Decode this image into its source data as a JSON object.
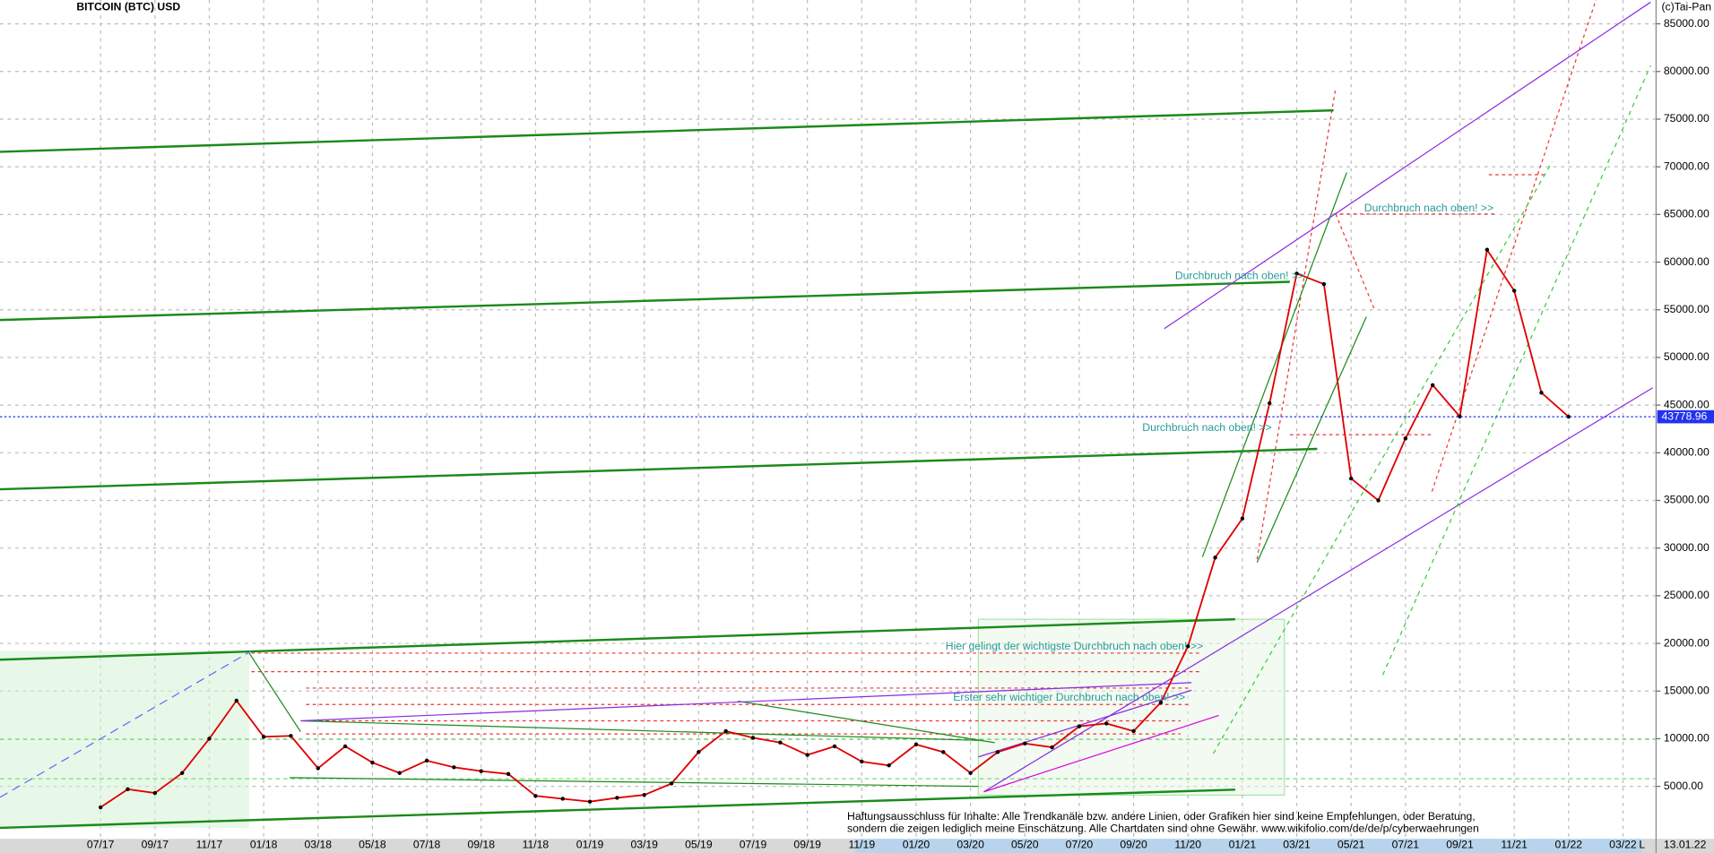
{
  "chart_data": {
    "type": "line",
    "title": "BITCOIN (BTC) USD",
    "source": "(c)Tai-Pan",
    "date_label": "13.01.22",
    "scale_label": "L",
    "annotations": [
      "Durchbruch nach oben! >>",
      "Durchbruch nach oben! >>",
      "Durchbruch nach oben! >>",
      "Hier gelingt der wichtigste Durchbruch nach oben! >>",
      "Erster sehr wichtiger Durchbruch nach oben! >>"
    ],
    "disclaimer": [
      "Haftungsausschluss für Inhalte: Alle Trendkanäle bzw. andere Linien, oder Grafiken hier sind keine Empfehlungen, oder Beratung,",
      "sondern die zeigen lediglich meine  Einschätzung. Alle Chartdaten sind ohne Gewähr.  www.wikifolio.com/de/de/p/cyberwaehrungen"
    ],
    "categories": [
      "07/17",
      null,
      "09/17",
      null,
      "11/17",
      null,
      "01/18",
      null,
      "03/18",
      null,
      "05/18",
      null,
      "07/18",
      null,
      "09/18",
      null,
      "11/18",
      null,
      "01/19",
      null,
      "03/19",
      null,
      "05/19",
      null,
      "07/19",
      null,
      "09/19",
      null,
      "11/19",
      null,
      "01/20",
      null,
      "03/20",
      null,
      "05/20",
      null,
      "07/20",
      null,
      "09/20",
      null,
      "11/20",
      null,
      "01/21",
      null,
      "03/21",
      null,
      "05/21",
      null,
      "07/21",
      null,
      "09/21",
      null,
      "11/21",
      null,
      "01/22",
      null,
      "03/22"
    ],
    "series": [
      {
        "name": "BTC",
        "color": "#e00000",
        "values": [
          2800,
          4700,
          4300,
          6400,
          10000,
          14000,
          10200,
          10300,
          6900,
          9200,
          7500,
          6400,
          7700,
          7000,
          6600,
          6300,
          4000,
          3700,
          3400,
          3800,
          4100,
          5300,
          8600,
          10800,
          10100,
          9600,
          8300,
          9200,
          7600,
          7200,
          9400,
          8600,
          6400,
          8600,
          9500,
          9100,
          11300,
          11600,
          10800,
          13800,
          19700,
          29000,
          33100,
          45200,
          58800,
          57700,
          37300,
          35000,
          41500,
          47100,
          43800,
          61300,
          57000,
          46300,
          43779,
          null,
          null
        ]
      }
    ],
    "last_price": 43778.96,
    "ylim": [
      -500,
      87500
    ],
    "yticks": [
      {
        "value": 5000,
        "label": "5000.00"
      },
      {
        "value": 10000,
        "label": "10000.00"
      },
      {
        "value": 15000,
        "label": "15000.00"
      },
      {
        "value": 20000,
        "label": "20000.00"
      },
      {
        "value": 25000,
        "label": "25000.00"
      },
      {
        "value": 30000,
        "label": "30000.00"
      },
      {
        "value": 35000,
        "label": "35000.00"
      },
      {
        "value": 40000,
        "label": "40000.00"
      },
      {
        "value": 45000,
        "label": "45000.00"
      },
      {
        "value": 50000,
        "label": "50000.00"
      },
      {
        "value": 55000,
        "label": "55000.00"
      },
      {
        "value": 60000,
        "label": "60000.00"
      },
      {
        "value": 65000,
        "label": "65000.00"
      },
      {
        "value": 70000,
        "label": "70000.00"
      },
      {
        "value": 75000,
        "label": "75000.00"
      },
      {
        "value": 80000,
        "label": "80000.00"
      },
      {
        "value": 85000,
        "label": "85000.00"
      }
    ],
    "grid": true
  }
}
